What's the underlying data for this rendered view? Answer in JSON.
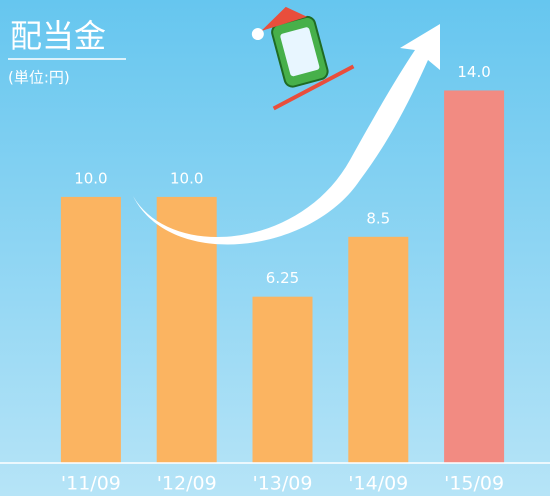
{
  "chart_data": {
    "type": "bar",
    "title": "配当金",
    "subtitle": "(単位:円)",
    "categories": [
      "'11/09",
      "'12/09",
      "'13/09",
      "'14/09",
      "'15/09"
    ],
    "values": [
      10,
      10,
      6.25,
      8.5,
      14
    ],
    "value_labels": [
      "10.0",
      "10.0",
      "6.25",
      "8.5",
      "14.0"
    ],
    "colors": [
      "#fbb461",
      "#fbb461",
      "#fbb461",
      "#fbb461",
      "#f28b82"
    ],
    "ylim": [
      0,
      17.4
    ],
    "grid": false
  }
}
